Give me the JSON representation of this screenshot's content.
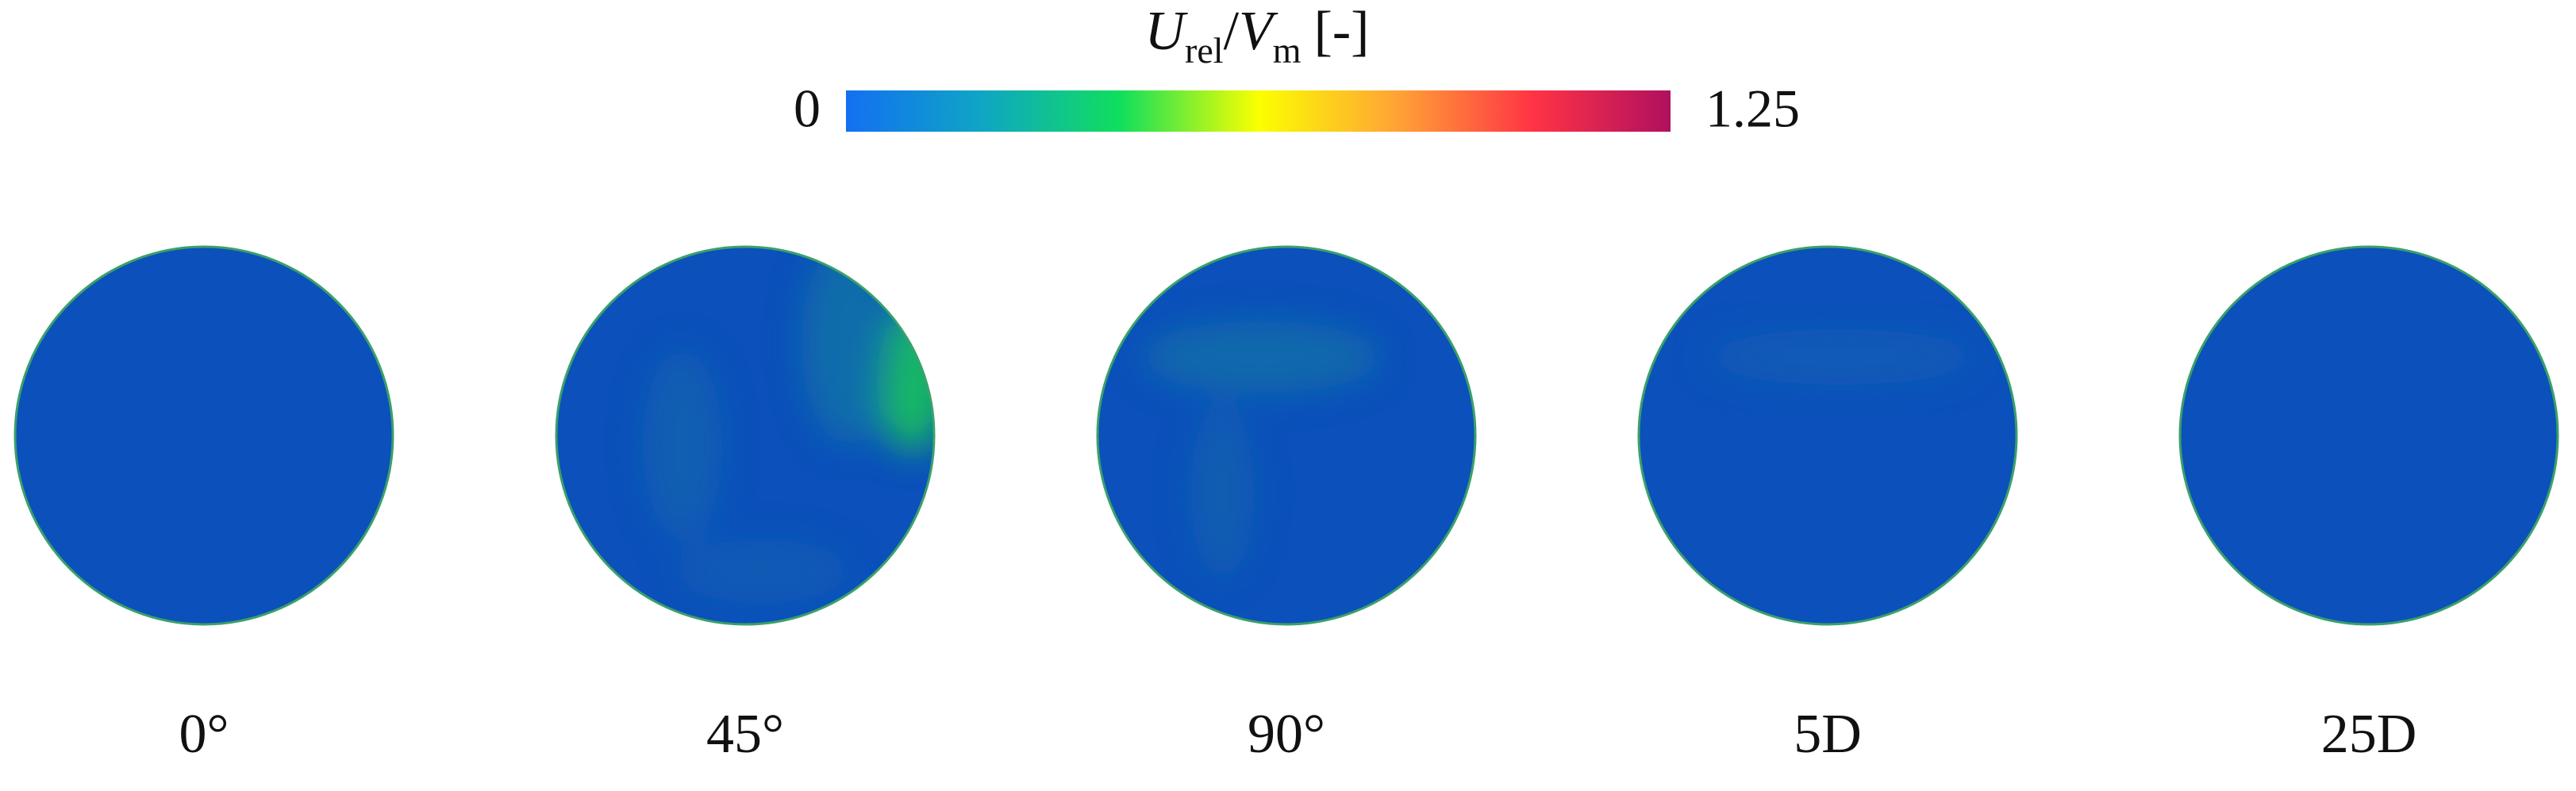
{
  "chart_data": {
    "type": "contour",
    "colorbar": {
      "label": [
        {
          "text": "U",
          "style": "italic"
        },
        {
          "text": "rel",
          "style": "sub"
        },
        {
          "text": "/",
          "style": "normal"
        },
        {
          "text": "V",
          "style": "italic"
        },
        {
          "text": "m",
          "style": "sub"
        },
        {
          "text": "[-]",
          "style": "normal"
        }
      ],
      "clim": [
        0,
        1.25
      ],
      "ticks": [
        0,
        1.25
      ],
      "colormap": [
        "#1270f2",
        "#0fa6c4",
        "#10df5c",
        "#fbff00",
        "#ffa435",
        "#ff3345",
        "#b0105f"
      ]
    },
    "field_color": "#0b50bb",
    "panels": [
      {
        "label": "0°"
      },
      {
        "label": "45°"
      },
      {
        "label": "90°"
      },
      {
        "label": "5D"
      },
      {
        "label": "25D"
      }
    ]
  }
}
